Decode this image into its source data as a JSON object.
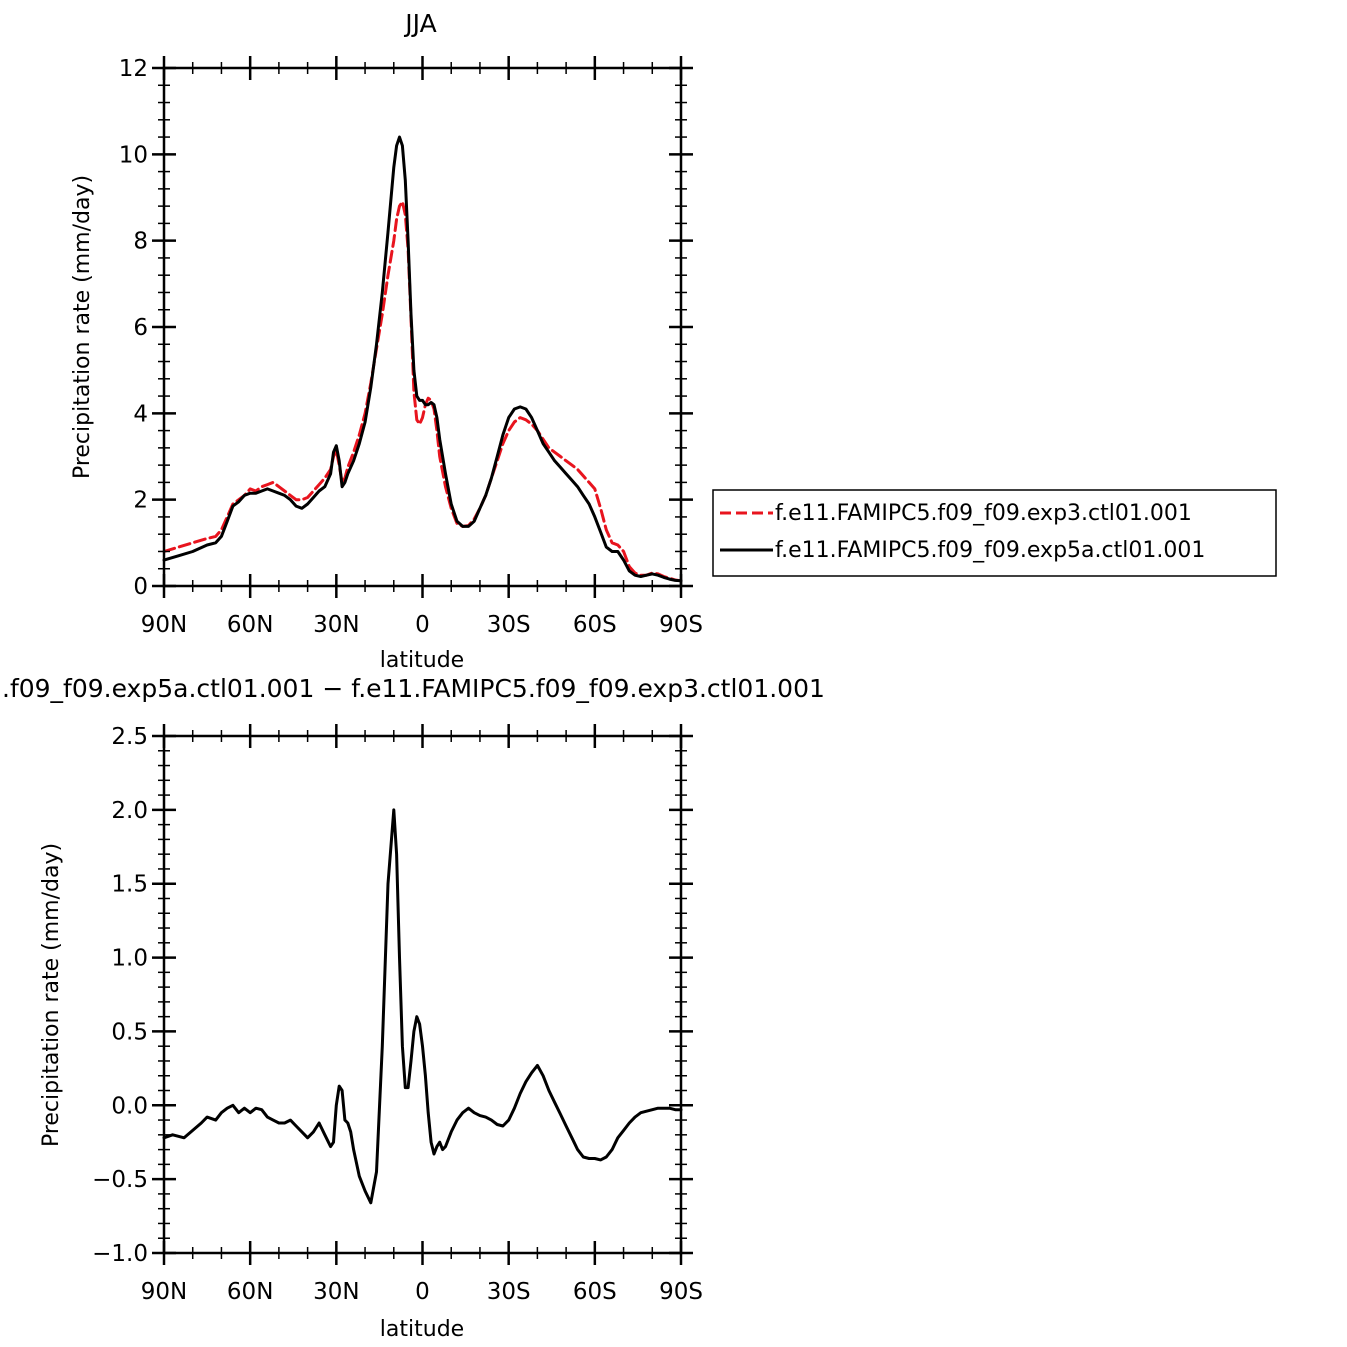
{
  "chart_data": [
    {
      "type": "line",
      "title": "JJA",
      "xlabel": "latitude",
      "ylabel": "Precipitation rate (mm/day)",
      "xlim": [
        -90,
        90
      ],
      "ylim": [
        0,
        12
      ],
      "xticks": [
        -90,
        -60,
        -30,
        0,
        30,
        60,
        90
      ],
      "xtick_labels": [
        "90N",
        "60N",
        "30N",
        "0",
        "30S",
        "60S",
        "90S"
      ],
      "yticks": [
        0,
        2,
        4,
        6,
        8,
        10,
        12
      ],
      "ytick_labels": [
        "0",
        "2",
        "4",
        "6",
        "8",
        "10",
        "12"
      ],
      "legend_position": "right",
      "series": [
        {
          "name": "f.e11.FAMIPC5.f09_f09.exp3.ctl01.001",
          "color": "#e8141e",
          "style": "dashed",
          "x": [
            -90,
            -85,
            -80,
            -75,
            -72,
            -70,
            -68,
            -66,
            -64,
            -62,
            -60,
            -58,
            -56,
            -54,
            -52,
            -50,
            -48,
            -46,
            -44,
            -42,
            -40,
            -38,
            -36,
            -34,
            -32,
            -31,
            -30,
            -29,
            -28,
            -27,
            -26,
            -24,
            -22,
            -20,
            -18,
            -16,
            -14,
            -12,
            -10,
            -9,
            -8,
            -7,
            -6,
            -5,
            -4,
            -3,
            -2,
            -1,
            0,
            1,
            2,
            3,
            4,
            5,
            6,
            8,
            10,
            12,
            14,
            16,
            18,
            20,
            22,
            24,
            26,
            28,
            30,
            32,
            34,
            36,
            38,
            40,
            42,
            44,
            46,
            48,
            50,
            52,
            54,
            56,
            58,
            60,
            62,
            64,
            66,
            68,
            70,
            72,
            74,
            76,
            78,
            80,
            82,
            84,
            86,
            88,
            90
          ],
          "y": [
            0.8,
            0.9,
            1.0,
            1.1,
            1.15,
            1.3,
            1.6,
            1.9,
            2.0,
            2.1,
            2.25,
            2.2,
            2.3,
            2.35,
            2.4,
            2.3,
            2.2,
            2.1,
            2.0,
            2.0,
            2.05,
            2.2,
            2.35,
            2.5,
            2.7,
            3.0,
            3.15,
            2.8,
            2.4,
            2.5,
            2.75,
            3.1,
            3.5,
            4.0,
            4.7,
            5.5,
            6.3,
            7.2,
            8.0,
            8.5,
            8.8,
            8.9,
            8.6,
            7.8,
            6.2,
            4.5,
            3.85,
            3.75,
            3.9,
            4.2,
            4.35,
            4.3,
            4.1,
            3.6,
            3.0,
            2.3,
            1.8,
            1.45,
            1.38,
            1.4,
            1.55,
            1.8,
            2.1,
            2.5,
            2.9,
            3.3,
            3.6,
            3.8,
            3.9,
            3.85,
            3.75,
            3.6,
            3.4,
            3.2,
            3.1,
            3.0,
            2.9,
            2.8,
            2.7,
            2.55,
            2.4,
            2.25,
            1.8,
            1.3,
            1.0,
            0.95,
            0.8,
            0.45,
            0.3,
            0.25,
            0.25,
            0.3,
            0.28,
            0.22,
            0.18,
            0.14,
            0.12
          ]
        },
        {
          "name": "f.e11.FAMIPC5.f09_f09.exp5a.ctl01.001",
          "color": "#000000",
          "style": "solid",
          "x": [
            -90,
            -85,
            -80,
            -75,
            -72,
            -70,
            -68,
            -66,
            -64,
            -62,
            -60,
            -58,
            -56,
            -54,
            -52,
            -50,
            -48,
            -46,
            -44,
            -42,
            -40,
            -38,
            -36,
            -34,
            -32,
            -31,
            -30,
            -29,
            -28,
            -27,
            -26,
            -24,
            -22,
            -20,
            -18,
            -16,
            -14,
            -12,
            -10,
            -9,
            -8,
            -7,
            -6,
            -5,
            -4,
            -3,
            -2,
            -1,
            0,
            1,
            2,
            3,
            4,
            5,
            6,
            8,
            10,
            12,
            14,
            16,
            18,
            20,
            22,
            24,
            26,
            28,
            30,
            32,
            34,
            36,
            38,
            40,
            42,
            44,
            46,
            48,
            50,
            52,
            54,
            56,
            58,
            60,
            62,
            64,
            66,
            68,
            70,
            72,
            74,
            76,
            78,
            80,
            82,
            84,
            86,
            88,
            90
          ],
          "y": [
            0.6,
            0.7,
            0.8,
            0.95,
            1.0,
            1.15,
            1.5,
            1.85,
            1.95,
            2.1,
            2.15,
            2.15,
            2.2,
            2.25,
            2.2,
            2.15,
            2.1,
            2.0,
            1.85,
            1.8,
            1.9,
            2.05,
            2.2,
            2.3,
            2.6,
            3.1,
            3.25,
            2.9,
            2.3,
            2.4,
            2.6,
            2.9,
            3.3,
            3.8,
            4.6,
            5.6,
            6.8,
            8.2,
            9.7,
            10.2,
            10.4,
            10.2,
            9.4,
            8.0,
            6.3,
            5.0,
            4.4,
            4.3,
            4.3,
            4.2,
            4.2,
            4.25,
            4.2,
            3.9,
            3.4,
            2.6,
            1.9,
            1.5,
            1.38,
            1.38,
            1.5,
            1.8,
            2.1,
            2.5,
            3.0,
            3.5,
            3.9,
            4.1,
            4.15,
            4.1,
            3.9,
            3.6,
            3.3,
            3.1,
            2.9,
            2.75,
            2.6,
            2.45,
            2.3,
            2.1,
            1.9,
            1.6,
            1.25,
            0.9,
            0.8,
            0.8,
            0.6,
            0.35,
            0.25,
            0.22,
            0.25,
            0.28,
            0.25,
            0.2,
            0.16,
            0.13,
            0.12
          ]
        }
      ]
    },
    {
      "type": "line",
      "title": ".f09_f09.exp5a.ctl01.001 − f.e11.FAMIPC5.f09_f09.exp3.ctl01.001",
      "xlabel": "latitude",
      "ylabel": "Precipitation rate (mm/day)",
      "xlim": [
        -90,
        90
      ],
      "ylim": [
        -1.0,
        2.5
      ],
      "xticks": [
        -90,
        -60,
        -30,
        0,
        30,
        60,
        90
      ],
      "xtick_labels": [
        "90N",
        "60N",
        "30N",
        "0",
        "30S",
        "60S",
        "90S"
      ],
      "yticks": [
        -1.0,
        -0.5,
        0.0,
        0.5,
        1.0,
        1.5,
        2.0,
        2.5
      ],
      "ytick_labels": [
        "−1.0",
        "−0.5",
        "0.0",
        "0.5",
        "1.0",
        "1.5",
        "2.0",
        "2.5"
      ],
      "series": [
        {
          "color": "#000000",
          "style": "solid",
          "x": [
            -90,
            -87,
            -85,
            -83,
            -80,
            -77,
            -75,
            -72,
            -70,
            -68,
            -66,
            -64,
            -62,
            -60,
            -58,
            -56,
            -54,
            -52,
            -50,
            -48,
            -46,
            -44,
            -42,
            -40,
            -38,
            -36,
            -34,
            -32,
            -31,
            -30,
            -29,
            -28,
            -27,
            -26,
            -25,
            -24,
            -22,
            -20,
            -18,
            -16,
            -14,
            -12,
            -10,
            -9,
            -8,
            -7,
            -6,
            -5,
            -4,
            -3,
            -2,
            -1,
            0,
            1,
            2,
            3,
            4,
            5,
            6,
            7,
            8,
            10,
            12,
            14,
            16,
            18,
            20,
            22,
            24,
            26,
            28,
            30,
            32,
            34,
            36,
            38,
            40,
            42,
            44,
            46,
            48,
            50,
            52,
            54,
            56,
            58,
            60,
            62,
            64,
            66,
            68,
            70,
            72,
            74,
            76,
            78,
            80,
            82,
            84,
            86,
            88,
            90
          ],
          "y": [
            -0.22,
            -0.2,
            -0.21,
            -0.22,
            -0.17,
            -0.12,
            -0.08,
            -0.1,
            -0.05,
            -0.02,
            0.0,
            -0.05,
            -0.02,
            -0.05,
            -0.02,
            -0.03,
            -0.08,
            -0.1,
            -0.12,
            -0.12,
            -0.1,
            -0.14,
            -0.18,
            -0.22,
            -0.18,
            -0.12,
            -0.2,
            -0.28,
            -0.25,
            0.0,
            0.13,
            0.1,
            -0.1,
            -0.12,
            -0.18,
            -0.3,
            -0.48,
            -0.58,
            -0.66,
            -0.45,
            0.4,
            1.5,
            2.0,
            1.7,
            1.0,
            0.4,
            0.12,
            0.12,
            0.3,
            0.5,
            0.6,
            0.55,
            0.4,
            0.2,
            -0.05,
            -0.25,
            -0.33,
            -0.28,
            -0.25,
            -0.3,
            -0.28,
            -0.18,
            -0.1,
            -0.05,
            -0.02,
            -0.05,
            -0.07,
            -0.08,
            -0.1,
            -0.13,
            -0.14,
            -0.1,
            -0.02,
            0.08,
            0.16,
            0.22,
            0.27,
            0.2,
            0.1,
            0.02,
            -0.06,
            -0.14,
            -0.22,
            -0.3,
            -0.35,
            -0.36,
            -0.36,
            -0.37,
            -0.35,
            -0.3,
            -0.22,
            -0.17,
            -0.12,
            -0.08,
            -0.05,
            -0.04,
            -0.03,
            -0.02,
            -0.02,
            -0.02,
            -0.03,
            -0.03
          ]
        }
      ]
    }
  ]
}
